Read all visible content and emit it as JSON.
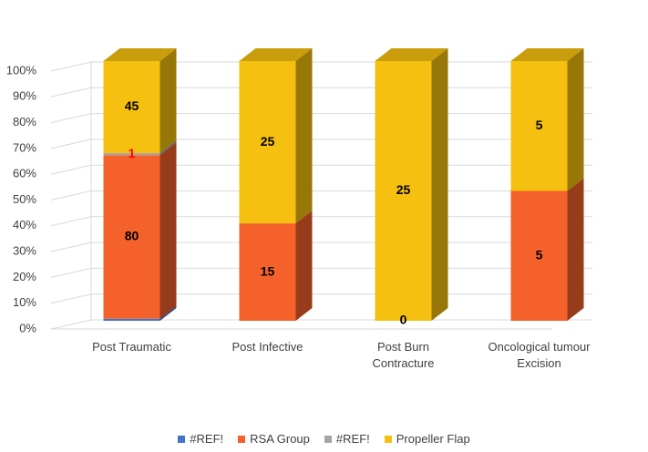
{
  "chart_data": {
    "type": "bar3d_percent_stacked",
    "categories": [
      "Post Traumatic",
      "Post Infective",
      "Post Burn Contracture",
      "Oncological tumour Excision"
    ],
    "series": [
      {
        "name": "#REF!",
        "color": "#4472c4",
        "values": [
          1,
          0,
          0,
          0
        ],
        "value_labels": [
          null,
          null,
          null,
          null
        ]
      },
      {
        "name": "RSA Group",
        "color": "#f4612a",
        "values": [
          80,
          15,
          0,
          5
        ]
      },
      {
        "name": "#REF!",
        "color": "#a5a5a5",
        "values": [
          1,
          0,
          0,
          0
        ],
        "value_labels": [
          "1",
          null,
          null,
          null
        ],
        "label_color": "#ff0000"
      },
      {
        "name": "Propeller Flap",
        "color": "#f5c00f",
        "values": [
          45,
          25,
          25,
          5
        ]
      }
    ],
    "ylim": [
      0,
      100
    ],
    "yticks": [
      {
        "value": 0,
        "label": "0%"
      },
      {
        "value": 10,
        "label": "10%"
      },
      {
        "value": 20,
        "label": "20%"
      },
      {
        "value": 30,
        "label": "30%"
      },
      {
        "value": 40,
        "label": "40%"
      },
      {
        "value": 50,
        "label": "50%"
      },
      {
        "value": 60,
        "label": "60%"
      },
      {
        "value": 70,
        "label": "70%"
      },
      {
        "value": 80,
        "label": "80%"
      },
      {
        "value": 90,
        "label": "90%"
      },
      {
        "value": 100,
        "label": "100%"
      }
    ],
    "grid": true,
    "legend": "bottom"
  }
}
